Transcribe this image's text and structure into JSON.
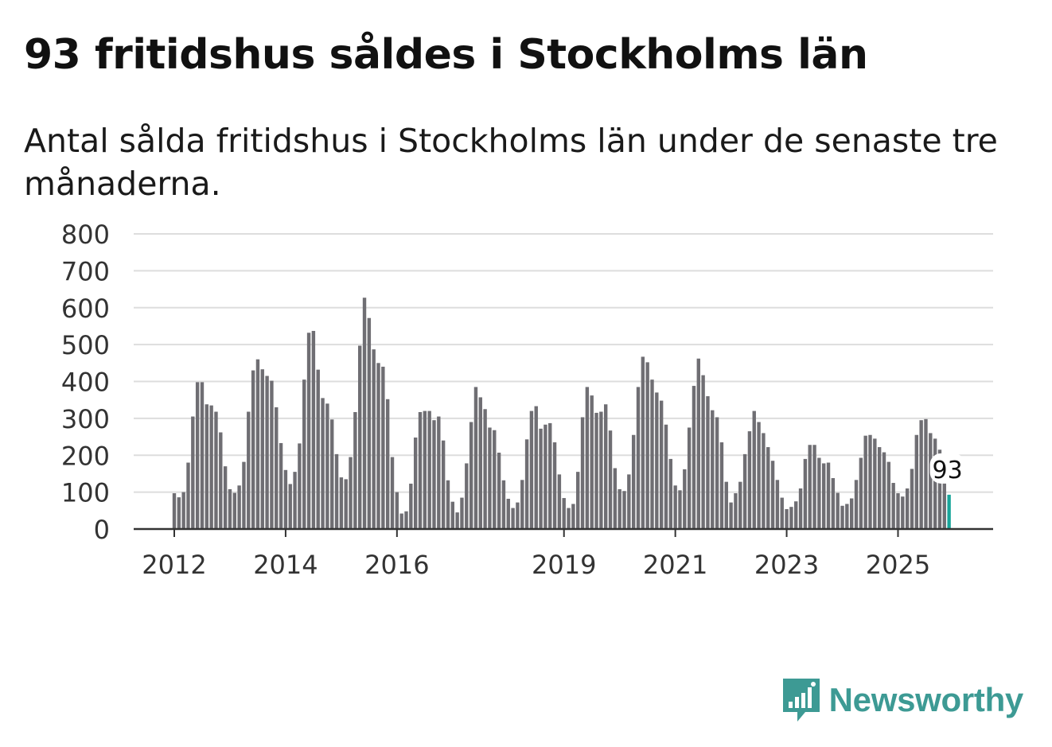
{
  "header": {
    "title": "93 fritidshus såldes i Stockholms län",
    "subtitle": "Antal sålda fritidshus i Stockholms län under de senaste tre månaderna."
  },
  "brand": {
    "name": "Newsworthy",
    "icon": "bar-chart-speech-bubble-icon",
    "color": "#3d9a94"
  },
  "chart_data": {
    "type": "bar",
    "title": "93 fritidshus såldes i Stockholms län",
    "subtitle": "Antal sålda fritidshus i Stockholms län under de senaste tre månaderna.",
    "xlabel": "",
    "ylabel": "",
    "start_year": 2012,
    "ylim": [
      0,
      800
    ],
    "yticks": [
      0,
      100,
      200,
      300,
      400,
      500,
      600,
      700,
      800
    ],
    "xticks": [
      "2012",
      "2014",
      "2016",
      "2019",
      "2021",
      "2023",
      "2025"
    ],
    "grid": true,
    "bar_color": "#6f6e73",
    "highlight_color": "#18a59a",
    "highlight_label": "93",
    "values": [
      97,
      86,
      100,
      180,
      305,
      398,
      398,
      338,
      335,
      318,
      262,
      170,
      108,
      98,
      118,
      182,
      318,
      430,
      460,
      433,
      415,
      402,
      330,
      233,
      160,
      122,
      155,
      232,
      405,
      532,
      537,
      432,
      355,
      340,
      297,
      203,
      140,
      135,
      195,
      317,
      497,
      627,
      572,
      487,
      450,
      440,
      352,
      195,
      100,
      42,
      48,
      123,
      248,
      317,
      320,
      320,
      295,
      305,
      240,
      132,
      74,
      45,
      85,
      178,
      290,
      385,
      357,
      325,
      275,
      268,
      207,
      132,
      82,
      57,
      72,
      133,
      243,
      320,
      333,
      272,
      283,
      287,
      235,
      148,
      84,
      57,
      68,
      155,
      303,
      385,
      362,
      315,
      318,
      338,
      267,
      165,
      108,
      103,
      148,
      255,
      385,
      467,
      452,
      405,
      370,
      348,
      283,
      190,
      118,
      105,
      162,
      275,
      388,
      462,
      417,
      360,
      322,
      303,
      235,
      128,
      72,
      97,
      128,
      203,
      265,
      320,
      290,
      260,
      222,
      185,
      133,
      85,
      54,
      60,
      75,
      110,
      190,
      228,
      228,
      193,
      178,
      180,
      138,
      98,
      63,
      68,
      83,
      133,
      193,
      253,
      255,
      245,
      222,
      208,
      182,
      125,
      97,
      88,
      110,
      163,
      255,
      295,
      298,
      260,
      245,
      215,
      125,
      93
    ]
  }
}
